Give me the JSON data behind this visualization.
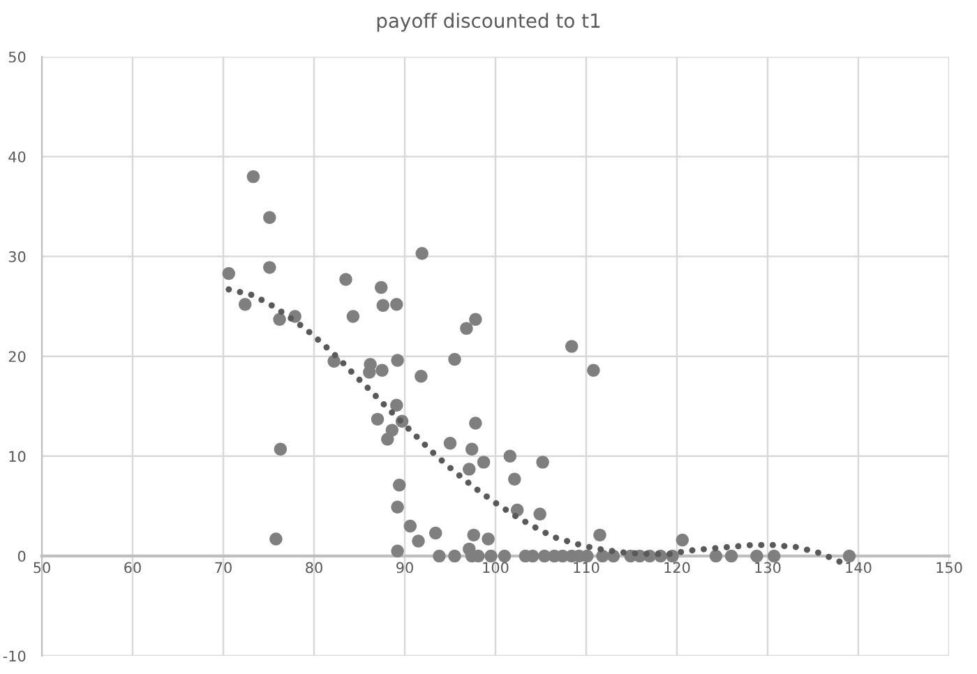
{
  "chart_data": {
    "type": "scatter",
    "title": "payoff discounted to t1",
    "xlim": [
      50,
      150
    ],
    "ylim": [
      -10,
      50
    ],
    "xticks": [
      50,
      60,
      70,
      80,
      90,
      100,
      110,
      120,
      130,
      140,
      150
    ],
    "yticks": [
      -10,
      0,
      10,
      20,
      30,
      40,
      50
    ],
    "grid": true,
    "marker": "circle",
    "series": [
      {
        "color": "#7f7f7f",
        "x": [
          70.6,
          72.4,
          73.3,
          75.1,
          75.1,
          76.2,
          77.9,
          76.3,
          75.8,
          82.2,
          83.5,
          84.3,
          86.2,
          86.1,
          87.5,
          87.4,
          87.6,
          89.1,
          89.2,
          87.0,
          88.6,
          88.1,
          89.1,
          89.7,
          91.9,
          91.8,
          89.4,
          89.2,
          89.2,
          90.6,
          91.5,
          93.4,
          93.8,
          95.0,
          95.5,
          95.5,
          96.8,
          97.8,
          97.8,
          97.4,
          98.7,
          97.1,
          97.6,
          99.2,
          97.1,
          97.4,
          98.1,
          99.5,
          101.0,
          101.6,
          102.1,
          102.4,
          103.3,
          104.1,
          104.9,
          105.2,
          105.4,
          106.5,
          107.4,
          108.4,
          108.4,
          109.2,
          110.1,
          110.8,
          111.5,
          111.8,
          113.0,
          114.9,
          115.9,
          117.0,
          118.2,
          119.5,
          120.6,
          124.3,
          126.0,
          128.8,
          130.7,
          139.0
        ],
        "values": [
          28.3,
          25.2,
          38.0,
          33.9,
          28.9,
          23.7,
          24.0,
          10.7,
          1.7,
          19.5,
          27.7,
          24.0,
          19.2,
          18.4,
          18.6,
          26.9,
          25.1,
          25.2,
          19.6,
          13.7,
          12.6,
          11.7,
          15.1,
          13.5,
          30.3,
          18.0,
          7.1,
          4.9,
          0.5,
          3.0,
          1.5,
          2.3,
          0,
          11.3,
          19.7,
          0,
          22.8,
          23.7,
          13.3,
          10.7,
          9.4,
          8.7,
          2.1,
          1.7,
          0.7,
          0,
          0,
          0,
          0,
          10.0,
          7.7,
          4.6,
          0,
          0,
          4.2,
          9.4,
          0,
          0,
          0,
          0,
          21.0,
          0,
          0,
          18.6,
          2.1,
          0,
          0,
          0,
          0,
          0,
          0,
          0,
          1.6,
          0,
          0,
          0,
          0,
          0
        ]
      },
      {
        "type": "line",
        "line_style": "dotted",
        "marker": "none",
        "color": "#595959",
        "x": [
          70.6,
          73.0,
          75.0,
          77.0,
          79.0,
          80.9,
          82.7,
          84.5,
          86.3,
          88.0,
          89.8,
          91.6,
          93.4,
          95.3,
          97.2,
          98.2,
          100.2,
          102.2,
          104.3,
          106.4,
          108.6,
          109.8,
          112.0,
          114.6,
          117.2,
          119.5,
          120.9,
          123.2,
          125.7,
          128.2,
          130.6,
          133.1,
          135.4,
          137.6,
          138.6
        ],
        "values": [
          26.7,
          26.2,
          25.3,
          24.1,
          22.8,
          21.3,
          19.8,
          18.1,
          16.5,
          14.9,
          13.3,
          11.7,
          10.1,
          8.6,
          7.2,
          6.5,
          5.2,
          4.0,
          2.9,
          1.9,
          1.3,
          1.0,
          0.6,
          0.3,
          0.2,
          0.2,
          0.5,
          0.7,
          0.9,
          1.1,
          1.1,
          0.9,
          0.4,
          -0.4,
          -0.9
        ]
      }
    ]
  }
}
